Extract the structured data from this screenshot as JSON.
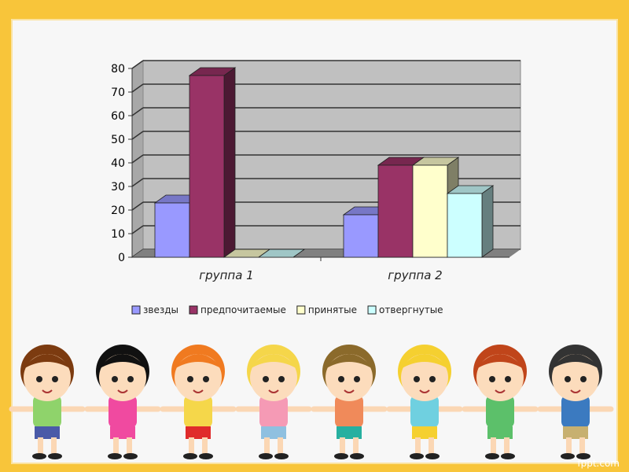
{
  "chart_data": {
    "type": "bar",
    "style": "3d-clustered-column",
    "categories": [
      "группа 1",
      "группа 2"
    ],
    "series": [
      {
        "name": "звезды",
        "values": [
          23,
          18
        ],
        "color": "#9999ff"
      },
      {
        "name": "предпочитаемые",
        "values": [
          77,
          39
        ],
        "color": "#993366"
      },
      {
        "name": "принятые",
        "values": [
          0,
          39
        ],
        "color": "#ffffcc"
      },
      {
        "name": "отвергнутые",
        "values": [
          0,
          27
        ],
        "color": "#ccffff"
      }
    ],
    "ylim": [
      0,
      80
    ],
    "yticks": [
      "0",
      "10",
      "20",
      "30",
      "40",
      "50",
      "60",
      "70",
      "80"
    ],
    "grid": true,
    "legend": "bottom"
  },
  "footer": "fppt.com",
  "colors": {
    "frame": "#f8c53a",
    "wall": "#c0c0c0",
    "floor": "#808080"
  }
}
